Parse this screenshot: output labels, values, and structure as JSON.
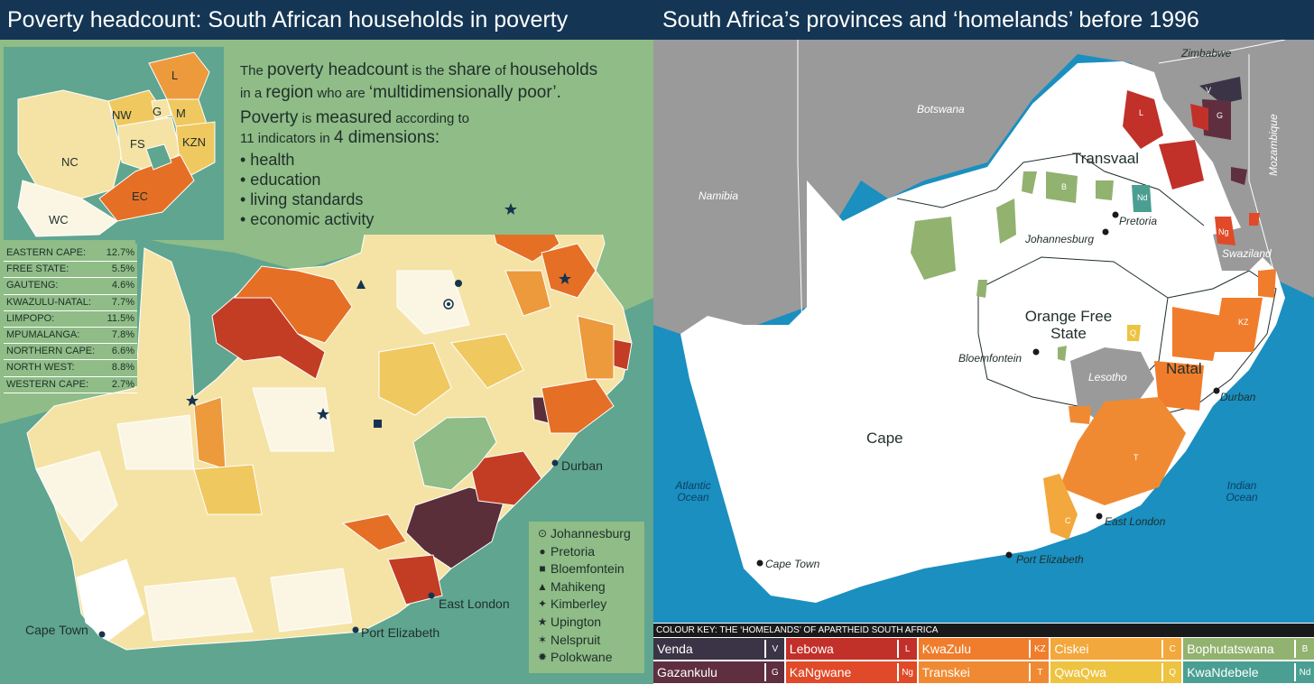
{
  "left": {
    "title": "Poverty headcount: South African households in poverty",
    "intro": {
      "line1_pre": "The",
      "line1_emph": "poverty headcount",
      "line1_mid": "is the",
      "line1_emph2": "share",
      "line1_mid2": "of",
      "line1_emph3": "households",
      "line2_pre": "in a",
      "line2_emph": "region",
      "line2_mid": "who are",
      "line2_emph2": "‘multidimensionally poor’.",
      "line3_emph": "Poverty",
      "line3_mid": "is",
      "line3_emph2": "measured",
      "line3_post": "according to",
      "line4_pre": "11 indicators in",
      "line4_emph": "4 dimensions:",
      "dimensions": [
        "• health",
        "• education",
        "• living standards",
        "• economic activity"
      ]
    },
    "province_stats": [
      {
        "name": "EASTERN CAPE:",
        "value": "12.7%"
      },
      {
        "name": "FREE STATE:",
        "value": "5.5%"
      },
      {
        "name": "GAUTENG:",
        "value": "4.6%"
      },
      {
        "name": "KWAZULU-NATAL:",
        "value": "7.7%"
      },
      {
        "name": "LIMPOPO:",
        "value": "11.5%"
      },
      {
        "name": "MPUMALANGA:",
        "value": "7.8%"
      },
      {
        "name": "NORTHERN CAPE:",
        "value": "6.6%"
      },
      {
        "name": "NORTH WEST:",
        "value": "8.8%"
      },
      {
        "name": "WESTERN CAPE:",
        "value": "2.7%"
      }
    ],
    "inset_labels": {
      "L": "L",
      "NW": "NW",
      "G": "G",
      "M": "M",
      "FS": "FS",
      "KZN": "KZN",
      "NC": "NC",
      "EC": "EC",
      "WC": "WC"
    },
    "city_labels": {
      "durban": "Durban",
      "east_london": "East London",
      "cape_town": "Cape Town",
      "port_elizabeth": "Port Elizabeth"
    },
    "legend": [
      {
        "symbol": "⊙",
        "label": "Johannesburg"
      },
      {
        "symbol": "●",
        "label": "Pretoria"
      },
      {
        "symbol": "■",
        "label": "Bloemfontein"
      },
      {
        "symbol": "▲",
        "label": "Mahikeng"
      },
      {
        "symbol": "✦",
        "label": "Kimberley"
      },
      {
        "symbol": "★",
        "label": "Upington"
      },
      {
        "symbol": "✶",
        "label": "Nelspruit"
      },
      {
        "symbol": "✹",
        "label": "Polokwane"
      }
    ],
    "colors": {
      "ocean": "#5fa58f",
      "neighbour": "#8fbc87",
      "lightest": "#fbf6e4",
      "light": "#f5e3a6",
      "mid": "#f0c860",
      "orange": "#ec9a3c",
      "dark_orange": "#e56f25",
      "red": "#c23d24",
      "maroon": "#5a2f3a"
    }
  },
  "right": {
    "title": "South Africa’s provinces and ‘homelands’ before 1996",
    "countries": {
      "zimbabwe": "Zimbabwe",
      "botswana": "Botswana",
      "namibia": "Namibia",
      "mozambique": "Mozambique",
      "swaziland": "Swaziland",
      "lesotho": "Lesotho"
    },
    "oceans": {
      "atlantic": "Atlantic Ocean",
      "indian": "Indian Ocean"
    },
    "provinces": {
      "transvaal": "Transvaal",
      "ofs": "Orange Free State",
      "natal": "Natal",
      "cape": "Cape"
    },
    "cities": {
      "pretoria": "Pretoria",
      "johannesburg": "Johannesburg",
      "bloemfontein": "Bloemfontein",
      "durban": "Durban",
      "east_london": "East London",
      "port_elizabeth": "Port Elizabeth",
      "cape_town": "Cape Town"
    },
    "homeland_marks": {
      "V": "V",
      "G": "G",
      "L": "L",
      "B": "B",
      "Nd": "Nd",
      "Ng": "Ng",
      "KZ": "KZ",
      "Q": "Q",
      "T": "T",
      "C": "C"
    },
    "key_title": "COLOUR KEY: THE ‘HOMELANDS’ OF APARTHEID SOUTH AFRICA",
    "key": [
      {
        "name": "Venda",
        "abbr": "V",
        "color": "#3b3446"
      },
      {
        "name": "Lebowa",
        "abbr": "L",
        "color": "#c2302a"
      },
      {
        "name": "KwaZulu",
        "abbr": "KZ",
        "color": "#ef7d2c"
      },
      {
        "name": "Ciskei",
        "abbr": "C",
        "color": "#f2a83c"
      },
      {
        "name": "Bophutatswana",
        "abbr": "B",
        "color": "#92b26f"
      },
      {
        "name": "Gazankulu",
        "abbr": "G",
        "color": "#5f2f3f"
      },
      {
        "name": "KaNgwane",
        "abbr": "Ng",
        "color": "#e14a28"
      },
      {
        "name": "Transkei",
        "abbr": "T",
        "color": "#f08a32"
      },
      {
        "name": "QwaQwa",
        "abbr": "Q",
        "color": "#edc340"
      },
      {
        "name": "KwaNdebele",
        "abbr": "Nd",
        "color": "#4a9f92"
      }
    ],
    "colors": {
      "ocean": "#1a8fc0",
      "neighbour": "#9a9a9a",
      "land": "#ffffff"
    }
  }
}
